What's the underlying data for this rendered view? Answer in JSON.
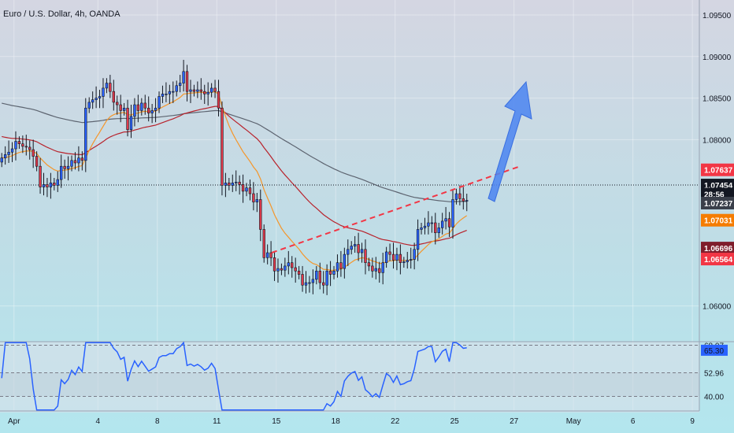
{
  "chart_data": {
    "type": "candlestick",
    "title": "Euro / U.S. Dollar, 4h, OANDA",
    "price_axis": {
      "ticks": [
        "1.09500",
        "1.09000",
        "1.08500",
        "1.08000",
        "1.06000"
      ],
      "tick_values": [
        1.095,
        1.09,
        1.085,
        1.08,
        1.06
      ],
      "range": [
        1.0557,
        1.0968
      ]
    },
    "time_axis": {
      "labels": [
        "Apr",
        "4",
        "8",
        "11",
        "15",
        "18",
        "22",
        "25",
        "27",
        "May",
        "6",
        "9"
      ],
      "bar_index": [
        4,
        28,
        45,
        62,
        79,
        96,
        113,
        130,
        147,
        164,
        181,
        198
      ],
      "bars_visible": [
        0,
        200
      ]
    },
    "price_tags": [
      {
        "text": "1.07637",
        "value": 1.07637,
        "color": "#F23645",
        "text_color": "#ffffff"
      },
      {
        "text": "1.07454",
        "value": 1.07454,
        "color": "#131722",
        "text_color": "#ffffff"
      },
      {
        "text": "28:56",
        "value": 1.07346,
        "color": "#131722",
        "text_color": "#ffffff"
      },
      {
        "text": "1.07237",
        "value": 1.07237,
        "color": "#3a3f4a",
        "text_color": "#ffffff"
      },
      {
        "text": "1.07031",
        "value": 1.07031,
        "color": "#F57C00",
        "text_color": "#ffffff"
      },
      {
        "text": "1.06696",
        "value": 1.06696,
        "color": "#7f1d2b",
        "text_color": "#ffffff"
      },
      {
        "text": "1.06564",
        "value": 1.06564,
        "color": "#F23645",
        "text_color": "#ffffff"
      }
    ],
    "last_price": 1.07454,
    "candles_close": [
      1.0778,
      1.0782,
      1.0785,
      1.0789,
      1.0798,
      1.0795,
      1.0792,
      1.0791,
      1.0788,
      1.078,
      1.0768,
      1.0743,
      1.0746,
      1.0743,
      1.0748,
      1.0745,
      1.0752,
      1.0768,
      1.0765,
      1.0768,
      1.0775,
      1.0772,
      1.0778,
      1.0775,
      1.0838,
      1.0845,
      1.0848,
      1.085,
      1.0852,
      1.0862,
      1.0868,
      1.0858,
      1.0845,
      1.0842,
      1.0835,
      1.0838,
      1.0812,
      1.0828,
      1.0842,
      1.0835,
      1.0844,
      1.0838,
      1.0832,
      1.0835,
      1.0838,
      1.0852,
      1.0855,
      1.0855,
      1.0858,
      1.0858,
      1.0865,
      1.0868,
      1.0882,
      1.0858,
      1.086,
      1.0858,
      1.086,
      1.0858,
      1.0855,
      1.0857,
      1.0862,
      1.0858,
      1.0838,
      1.0745,
      1.0748,
      1.0745,
      1.0748,
      1.0749,
      1.0746,
      1.0738,
      1.0742,
      1.0735,
      1.0725,
      1.0728,
      1.0692,
      1.0658,
      1.0664,
      1.0658,
      1.0642,
      1.0645,
      1.0643,
      1.0648,
      1.0652,
      1.0646,
      1.0642,
      1.0638,
      1.0625,
      1.0628,
      1.0628,
      1.0632,
      1.0642,
      1.0628,
      1.0625,
      1.0642,
      1.0638,
      1.0642,
      1.0652,
      1.0645,
      1.0662,
      1.0668,
      1.0672,
      1.0674,
      1.0664,
      1.0668,
      1.0652,
      1.0648,
      1.0642,
      1.0645,
      1.064,
      1.0652,
      1.0665,
      1.0662,
      1.0655,
      1.0662,
      1.0652,
      1.0653,
      1.0655,
      1.0656,
      1.0668,
      1.0692,
      1.0694,
      1.0696,
      1.07,
      1.07,
      1.0688,
      1.0694,
      1.0702,
      1.0705,
      1.0695,
      1.0728,
      1.0735,
      1.0729,
      1.0726,
      1.0727
    ],
    "rsi": {
      "levels": [
        "68.07",
        "52.96",
        "40.00"
      ],
      "tags": [
        {
          "text": "68.07",
          "value": 68.07
        },
        {
          "text": "65.30",
          "value": 65.3
        },
        {
          "text": "52.96",
          "value": 52.96
        },
        {
          "text": "40.00",
          "value": 40.0
        }
      ],
      "range": [
        32,
        70
      ]
    },
    "annotations": [
      "dashed red trendline",
      "blue upward arrow"
    ]
  },
  "colors": {
    "up": "#2962FF",
    "down": "#E0394A",
    "wick": "#131722",
    "ema_fast": "#F5962A",
    "ema_mid": "#B8222B",
    "ema_slow": "#5d6470",
    "rsi_line": "#2962FF",
    "trendline": "#F23645",
    "arrow": "#4F86F0"
  }
}
